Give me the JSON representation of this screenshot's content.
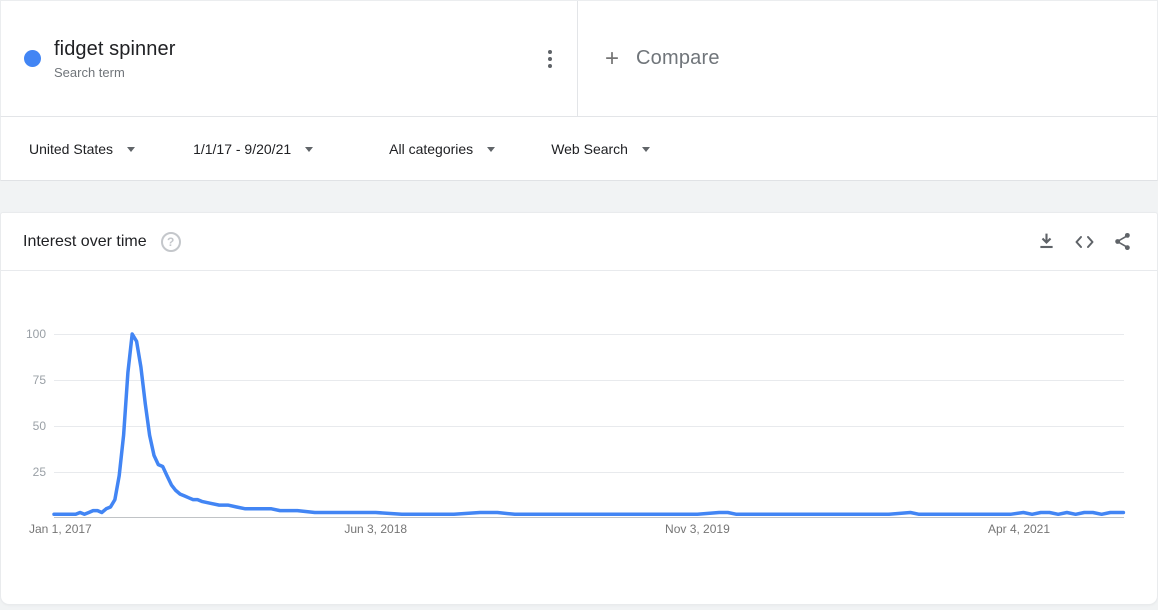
{
  "term_card": {
    "dot_color": "#4285f4",
    "term": "fidget spinner",
    "subtitle": "Search term"
  },
  "compare_card": {
    "plus": "+",
    "label": "Compare"
  },
  "filter_bar": {
    "region": "United States",
    "date_range": "1/1/17 - 9/20/21",
    "category": "All categories",
    "search_type": "Web Search"
  },
  "chart_card": {
    "title": "Interest over time",
    "help_label": "?"
  },
  "chart_data": {
    "type": "line",
    "title": "Interest over time",
    "series_name": "fidget spinner",
    "geo": "United States",
    "time_range_label": "1/1/17 - 9/20/21",
    "line_color": "#4285f4",
    "grid": true,
    "ylim": [
      0,
      100
    ],
    "y_ticks": [
      25,
      50,
      75,
      100
    ],
    "x_range": [
      "2017-01-01",
      "2021-09-20"
    ],
    "x_ticks": [
      {
        "label": "Jan 1, 2017",
        "date": "2017-01-01"
      },
      {
        "label": "Jun 3, 2018",
        "date": "2018-06-03"
      },
      {
        "label": "Nov 3, 2019",
        "date": "2019-11-03"
      },
      {
        "label": "Apr 4, 2021",
        "date": "2021-04-04"
      }
    ],
    "points": [
      [
        "2017-01-01",
        2
      ],
      [
        "2017-01-08",
        2
      ],
      [
        "2017-01-15",
        2
      ],
      [
        "2017-01-22",
        2
      ],
      [
        "2017-01-29",
        2
      ],
      [
        "2017-02-05",
        2
      ],
      [
        "2017-02-12",
        3
      ],
      [
        "2017-02-19",
        2
      ],
      [
        "2017-02-26",
        3
      ],
      [
        "2017-03-05",
        4
      ],
      [
        "2017-03-12",
        4
      ],
      [
        "2017-03-19",
        3
      ],
      [
        "2017-03-26",
        5
      ],
      [
        "2017-04-02",
        6
      ],
      [
        "2017-04-09",
        10
      ],
      [
        "2017-04-16",
        23
      ],
      [
        "2017-04-23",
        45
      ],
      [
        "2017-04-30",
        79
      ],
      [
        "2017-05-07",
        100
      ],
      [
        "2017-05-14",
        96
      ],
      [
        "2017-05-21",
        82
      ],
      [
        "2017-05-28",
        62
      ],
      [
        "2017-06-04",
        45
      ],
      [
        "2017-06-11",
        34
      ],
      [
        "2017-06-18",
        29
      ],
      [
        "2017-06-25",
        28
      ],
      [
        "2017-07-02",
        23
      ],
      [
        "2017-07-09",
        18
      ],
      [
        "2017-07-16",
        15
      ],
      [
        "2017-07-23",
        13
      ],
      [
        "2017-07-30",
        12
      ],
      [
        "2017-08-06",
        11
      ],
      [
        "2017-08-13",
        10
      ],
      [
        "2017-08-20",
        10
      ],
      [
        "2017-08-27",
        9
      ],
      [
        "2017-09-10",
        8
      ],
      [
        "2017-09-24",
        7
      ],
      [
        "2017-10-08",
        7
      ],
      [
        "2017-10-22",
        6
      ],
      [
        "2017-11-05",
        5
      ],
      [
        "2017-11-19",
        5
      ],
      [
        "2017-12-03",
        5
      ],
      [
        "2017-12-17",
        5
      ],
      [
        "2017-12-31",
        4
      ],
      [
        "2018-01-28",
        4
      ],
      [
        "2018-02-25",
        3
      ],
      [
        "2018-04-01",
        3
      ],
      [
        "2018-05-06",
        3
      ],
      [
        "2018-06-03",
        3
      ],
      [
        "2018-07-15",
        2
      ],
      [
        "2018-08-26",
        2
      ],
      [
        "2018-10-07",
        2
      ],
      [
        "2018-11-18",
        3
      ],
      [
        "2018-12-16",
        3
      ],
      [
        "2019-01-13",
        2
      ],
      [
        "2019-02-24",
        2
      ],
      [
        "2019-04-07",
        2
      ],
      [
        "2019-05-19",
        2
      ],
      [
        "2019-06-30",
        2
      ],
      [
        "2019-08-11",
        2
      ],
      [
        "2019-09-22",
        2
      ],
      [
        "2019-11-03",
        2
      ],
      [
        "2019-12-08",
        3
      ],
      [
        "2019-12-22",
        3
      ],
      [
        "2020-01-05",
        2
      ],
      [
        "2020-02-09",
        2
      ],
      [
        "2020-03-15",
        2
      ],
      [
        "2020-04-19",
        2
      ],
      [
        "2020-05-24",
        2
      ],
      [
        "2020-06-28",
        2
      ],
      [
        "2020-08-02",
        2
      ],
      [
        "2020-09-06",
        2
      ],
      [
        "2020-10-11",
        3
      ],
      [
        "2020-10-25",
        2
      ],
      [
        "2020-12-06",
        2
      ],
      [
        "2021-01-10",
        2
      ],
      [
        "2021-02-14",
        2
      ],
      [
        "2021-03-21",
        2
      ],
      [
        "2021-04-11",
        3
      ],
      [
        "2021-04-25",
        2
      ],
      [
        "2021-05-09",
        3
      ],
      [
        "2021-05-23",
        3
      ],
      [
        "2021-06-06",
        2
      ],
      [
        "2021-06-20",
        3
      ],
      [
        "2021-07-04",
        2
      ],
      [
        "2021-07-18",
        3
      ],
      [
        "2021-08-01",
        3
      ],
      [
        "2021-08-15",
        2
      ],
      [
        "2021-08-29",
        3
      ],
      [
        "2021-09-12",
        3
      ],
      [
        "2021-09-19",
        3
      ]
    ]
  }
}
